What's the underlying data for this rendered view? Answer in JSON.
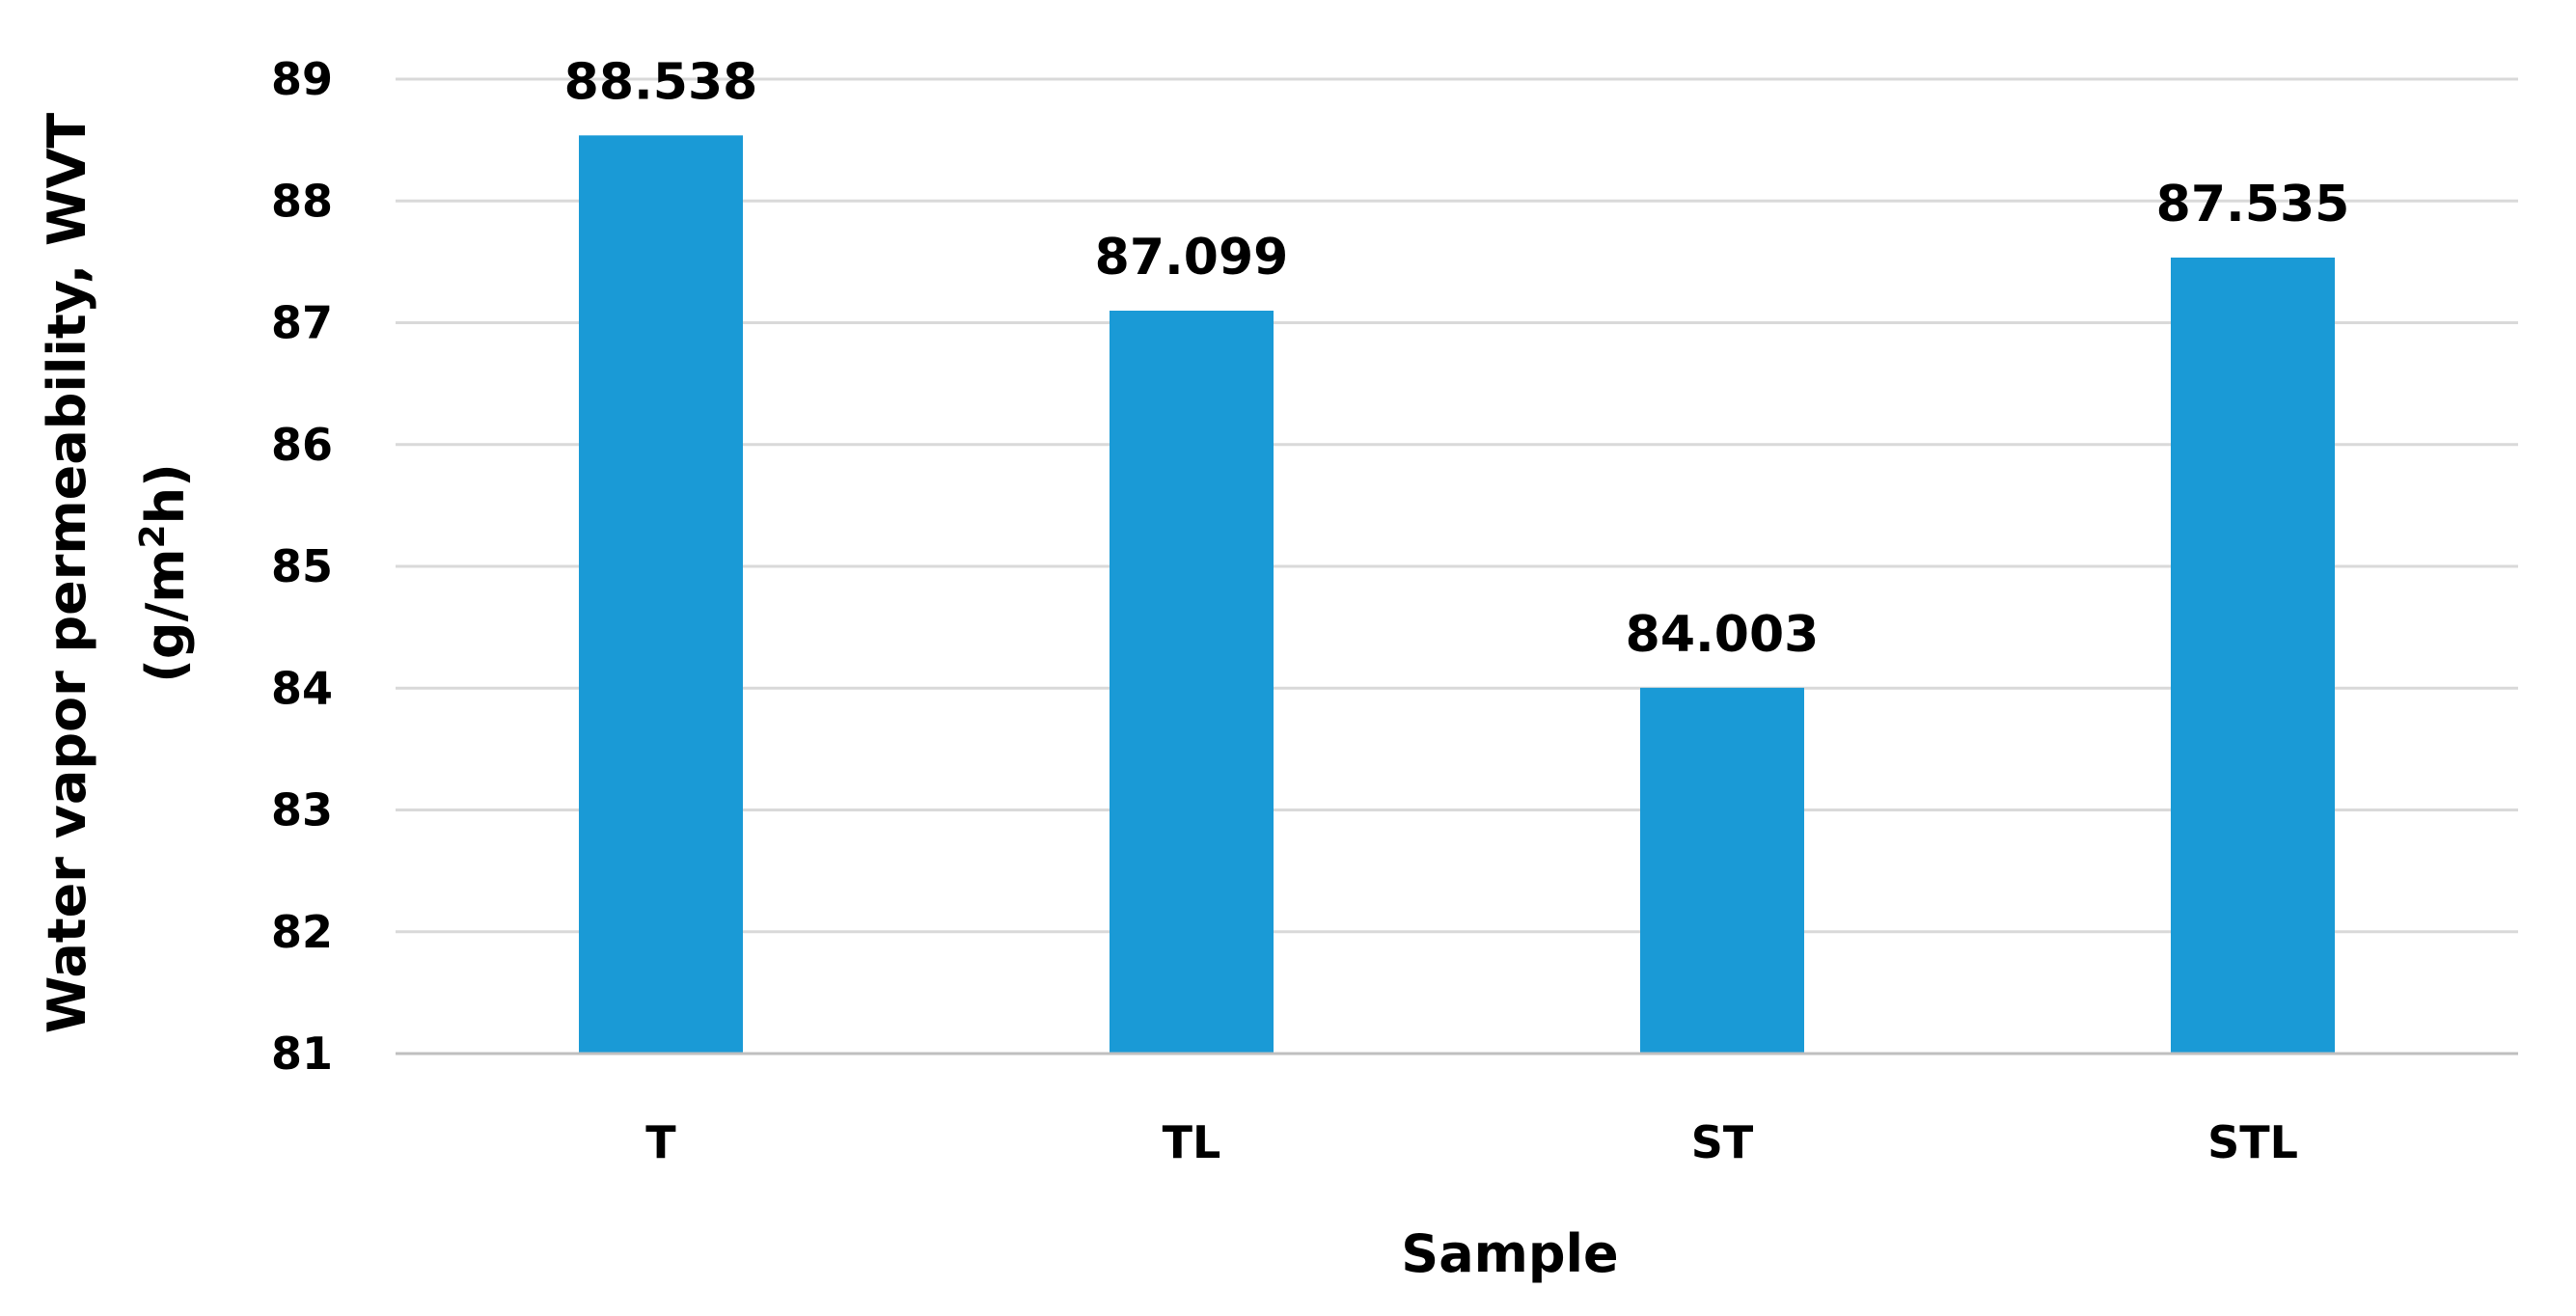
{
  "chart_data": {
    "type": "bar",
    "categories": [
      "T",
      "TL",
      "ST",
      "STL"
    ],
    "values": [
      88.538,
      87.099,
      84.003,
      87.535
    ],
    "data_labels": [
      "88.538",
      "87.099",
      "84.003",
      "87.535"
    ],
    "yticks": [
      "81",
      "82",
      "83",
      "84",
      "85",
      "86",
      "87",
      "88",
      "89"
    ],
    "ylim": [
      81,
      89
    ],
    "xlabel": "Sample",
    "ylabel_line1": "Water vapor permeability, WVT",
    "ylabel_line2_prefix": "(g/m",
    "ylabel_line2_sup": "2",
    "ylabel_line2_suffix": "h)",
    "grid": true,
    "legend": "none",
    "colors": {
      "bar": "#1a9ad6",
      "grid": "#d9d9d9",
      "axis": "#bfbfbf"
    }
  }
}
